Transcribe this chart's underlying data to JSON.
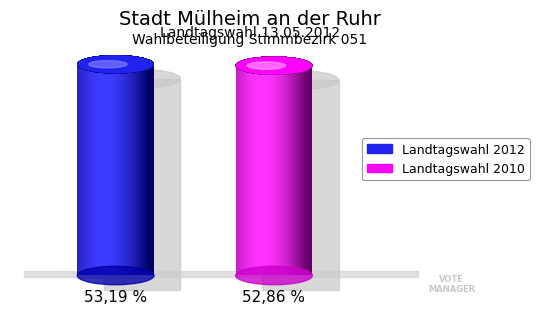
{
  "title": "Stadt Mülheim an der Ruhr",
  "subtitle1": "Landtagswahl 13.05.2012",
  "subtitle2": "Wahlbeteiligung Stimmbezirk 051",
  "values": [
    53.19,
    52.86
  ],
  "labels": [
    "53,19 %",
    "52,86 %"
  ],
  "bar_colors_main": [
    "#2222ee",
    "#ff00ff"
  ],
  "bar_colors_dark": [
    "#0000aa",
    "#cc00cc"
  ],
  "bar_colors_light": [
    "#8888ff",
    "#ffaaff"
  ],
  "legend_labels": [
    "Landtagswahl 2012",
    "Landtagswahl 2010"
  ],
  "background_color": "#ffffff",
  "title_fontsize": 14,
  "subtitle_fontsize": 10,
  "label_fontsize": 11,
  "legend_fontsize": 9
}
